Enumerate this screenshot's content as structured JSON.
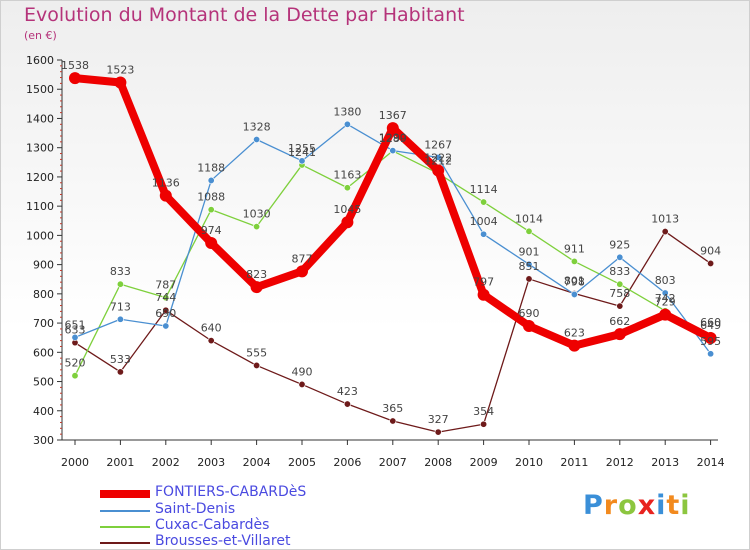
{
  "title": "Evolution du Montant de la Dette par Habitant",
  "unit": "(en €)",
  "logo": "Proxiti",
  "chart_data": {
    "type": "line",
    "title": "Evolution du Montant de la Dette par Habitant",
    "ylabel": "(en €)",
    "xlabel": "",
    "x": [
      "2000",
      "2001",
      "2002",
      "2003",
      "2004",
      "2005",
      "2006",
      "2007",
      "2008",
      "2009",
      "2010",
      "2011",
      "2012",
      "2013",
      "2014"
    ],
    "ylim": [
      300,
      1600
    ],
    "yticks": [
      300,
      400,
      500,
      600,
      700,
      800,
      900,
      1000,
      1100,
      1200,
      1300,
      1400,
      1500,
      1600
    ],
    "grid": false,
    "legend_position": "bottom-left",
    "series": [
      {
        "name": "FONTIERS-CABARDèS",
        "color": "#ee0000",
        "values": [
          1538,
          1523,
          1136,
          974,
          823,
          877,
          1045,
          1367,
          1222,
          797,
          690,
          623,
          662,
          729,
          649
        ]
      },
      {
        "name": "Saint-Denis",
        "color": "#4a8fd1",
        "values": [
          651,
          713,
          690,
          1188,
          1328,
          1255,
          1380,
          1290,
          1267,
          1004,
          901,
          798,
          925,
          803,
          595
        ]
      },
      {
        "name": "Cuxac-Cabardès",
        "color": "#7ed03c",
        "values": [
          520,
          833,
          787,
          1088,
          1030,
          1241,
          1163,
          1289,
          1212,
          1114,
          1014,
          911,
          833,
          742,
          660
        ]
      },
      {
        "name": "Brousses-et-Villaret",
        "color": "#6e1a1a",
        "values": [
          633,
          533,
          744,
          640,
          555,
          490,
          423,
          365,
          327,
          354,
          851,
          801,
          758,
          1013,
          904
        ]
      }
    ]
  }
}
